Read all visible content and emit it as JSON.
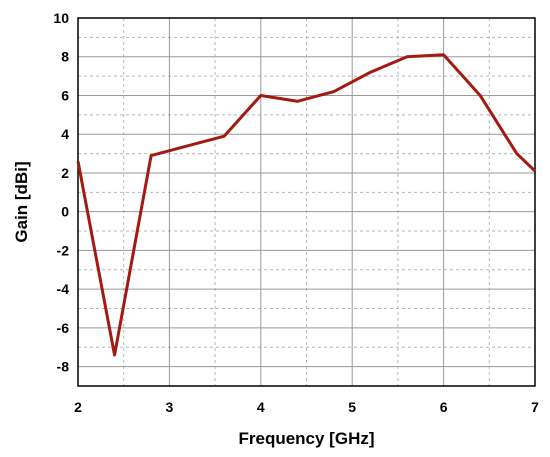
{
  "chart_data": {
    "type": "line",
    "xlabel": "Frequency   [GHz]",
    "ylabel": "Gain   [dBi]",
    "xlim": [
      2,
      7
    ],
    "ylim": [
      -9,
      10
    ],
    "xticks": [
      2,
      3,
      4,
      5,
      6,
      7
    ],
    "yticks": [
      -8,
      -6,
      -4,
      -2,
      0,
      2,
      4,
      6,
      8,
      10
    ],
    "grid": "major solid, minor dashed",
    "line_color": "#a21a12",
    "series": [
      {
        "x": [
          2.0,
          2.4,
          2.8,
          3.2,
          3.6,
          4.0,
          4.4,
          4.8,
          5.2,
          5.6,
          6.0,
          6.4,
          6.8,
          7.0
        ],
        "values": [
          2.6,
          -7.4,
          2.9,
          3.4,
          3.9,
          6.0,
          5.7,
          6.2,
          7.2,
          8.0,
          8.1,
          6.0,
          3.0,
          2.1
        ]
      }
    ]
  }
}
